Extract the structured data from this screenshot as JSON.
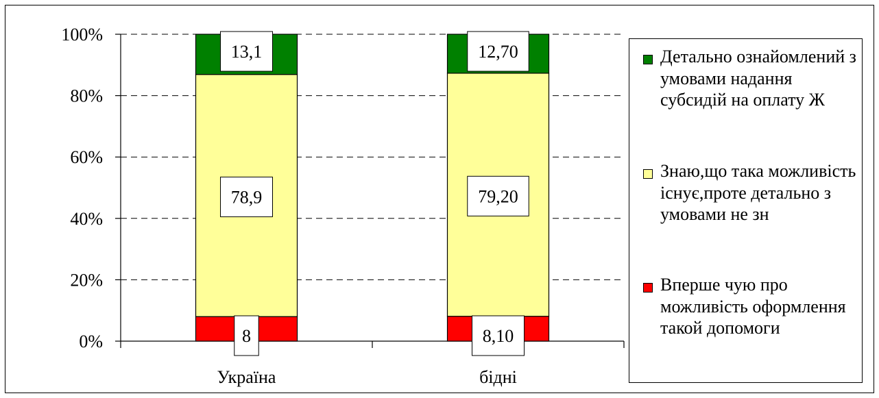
{
  "chart_data": {
    "type": "bar",
    "stacked": true,
    "normalized_percent": true,
    "categories": [
      "Україна",
      "бідні"
    ],
    "series": [
      {
        "name": "Вперше чую про можливість оформлення такой допомоги",
        "color": "#ff0000",
        "values": [
          8,
          8.1
        ],
        "labels": [
          "8",
          "8,10"
        ]
      },
      {
        "name": "Знаю,що така можливість існує,проте детально з умовами не зн",
        "color": "#ffff99",
        "values": [
          78.9,
          79.2
        ],
        "labels": [
          "78,9",
          "79,20"
        ]
      },
      {
        "name": "Детально ознайомлений з умовами надання субсидій на оплату Ж",
        "color": "#008000",
        "values": [
          13.1,
          12.7
        ],
        "labels": [
          "13,1",
          "12,70"
        ]
      }
    ],
    "yticks": [
      "0%",
      "20%",
      "40%",
      "60%",
      "80%",
      "100%"
    ],
    "ylim": [
      0,
      100
    ],
    "grid": true,
    "legend_position": "right"
  },
  "legend": {
    "items": [
      {
        "label": "Детально ознайомлений з умовами надання субсидій на оплату Ж",
        "color": "#008000"
      },
      {
        "label": "Знаю,що така можливість існує,проте детально з умовами не зн",
        "color": "#ffff99"
      },
      {
        "label": "Вперше чую про можливість оформлення такой допомоги",
        "color": "#ff0000"
      }
    ]
  }
}
